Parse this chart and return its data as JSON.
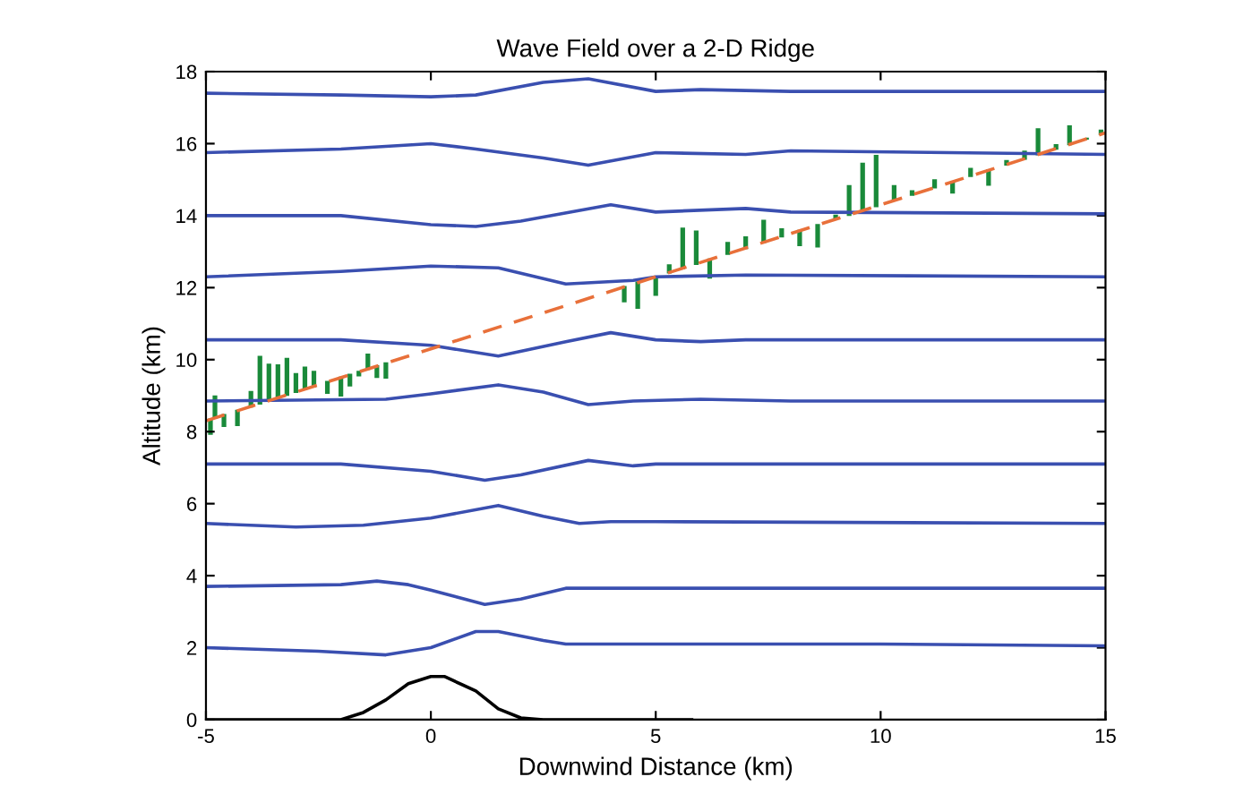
{
  "chart_data": {
    "type": "line",
    "title": "Wave Field over a 2-D Ridge",
    "xlabel": "Downwind Distance (km)",
    "ylabel": "Altitude (km)",
    "xlim": [
      -5,
      15
    ],
    "ylim": [
      0,
      18
    ],
    "xticks": [
      -5,
      0,
      5,
      10,
      15
    ],
    "yticks": [
      0,
      2,
      4,
      6,
      8,
      10,
      12,
      14,
      16,
      18
    ],
    "grid": false,
    "marker": "none",
    "series": [
      {
        "color": "#3a4fb0",
        "x": [
          -5,
          -2.5,
          -1,
          0,
          1,
          1.5,
          2.5,
          3,
          5,
          10,
          15
        ],
        "values": [
          2.0,
          1.9,
          1.8,
          2.0,
          2.45,
          2.45,
          2.2,
          2.1,
          2.1,
          2.1,
          2.05
        ]
      },
      {
        "color": "#3a4fb0",
        "x": [
          -5,
          -2,
          -1.2,
          -0.5,
          0,
          1.2,
          2,
          3,
          5,
          15
        ],
        "values": [
          3.7,
          3.75,
          3.85,
          3.75,
          3.6,
          3.2,
          3.35,
          3.65,
          3.65,
          3.65
        ]
      },
      {
        "color": "#3a4fb0",
        "x": [
          -5,
          -3,
          -1.5,
          0,
          1.5,
          2.5,
          3.3,
          4,
          5,
          15
        ],
        "values": [
          5.45,
          5.35,
          5.4,
          5.6,
          5.95,
          5.65,
          5.45,
          5.5,
          5.5,
          5.45
        ]
      },
      {
        "color": "#3a4fb0",
        "x": [
          -5,
          -2,
          0,
          1.2,
          2,
          3.5,
          4.5,
          5,
          15
        ],
        "values": [
          7.1,
          7.1,
          6.9,
          6.65,
          6.8,
          7.2,
          7.05,
          7.1,
          7.1
        ]
      },
      {
        "color": "#3a4fb0",
        "x": [
          -5,
          -1,
          0,
          1.5,
          2.5,
          3.5,
          4.5,
          6,
          8,
          15
        ],
        "values": [
          8.85,
          8.9,
          9.05,
          9.3,
          9.1,
          8.75,
          8.85,
          8.9,
          8.85,
          8.85
        ]
      },
      {
        "color": "#3a4fb0",
        "x": [
          -5,
          -2,
          0,
          1.5,
          3,
          4,
          5,
          6,
          7,
          15
        ],
        "values": [
          10.55,
          10.55,
          10.4,
          10.1,
          10.5,
          10.75,
          10.55,
          10.5,
          10.55,
          10.55
        ]
      },
      {
        "color": "#3a4fb0",
        "x": [
          -5,
          -2,
          0,
          1.5,
          3,
          4.5,
          5,
          7,
          15
        ],
        "values": [
          12.3,
          12.45,
          12.6,
          12.55,
          12.1,
          12.2,
          12.3,
          12.35,
          12.3
        ]
      },
      {
        "color": "#3a4fb0",
        "x": [
          -5,
          -2,
          0,
          1,
          2,
          4,
          5,
          7,
          8,
          15
        ],
        "values": [
          14.0,
          14.0,
          13.75,
          13.7,
          13.85,
          14.3,
          14.1,
          14.2,
          14.1,
          14.05
        ]
      },
      {
        "color": "#3a4fb0",
        "x": [
          -5,
          -2,
          0,
          1,
          2.5,
          3.5,
          5,
          7,
          8,
          15
        ],
        "values": [
          15.75,
          15.85,
          16.0,
          15.85,
          15.6,
          15.4,
          15.75,
          15.7,
          15.8,
          15.7
        ]
      },
      {
        "color": "#3a4fb0",
        "x": [
          -5,
          -2,
          0,
          1,
          2.5,
          3.5,
          5,
          6,
          8,
          15
        ],
        "values": [
          17.4,
          17.35,
          17.3,
          17.35,
          17.7,
          17.8,
          17.45,
          17.5,
          17.45,
          17.45
        ]
      },
      {
        "color": "#000000",
        "x": [
          -5,
          -2,
          -1.5,
          -1,
          -0.5,
          0,
          0.3,
          1,
          1.5,
          2,
          2.5,
          5.8
        ],
        "values": [
          0,
          0,
          0.2,
          0.55,
          1.0,
          1.2,
          1.2,
          0.8,
          0.3,
          0.05,
          0,
          0
        ]
      },
      {
        "type": "bar",
        "color": "#1a8a3a",
        "x": [
          -4.9,
          -4.8,
          -4.6,
          -4.3,
          -4.0,
          -3.8,
          -3.6,
          -3.4,
          -3.2,
          -3.0,
          -2.8,
          -2.6,
          -2.3,
          -2.0,
          -1.8,
          -1.6,
          -1.4,
          -1.2,
          -1.0,
          -0.8,
          4.3,
          4.6,
          5.0,
          5.3,
          5.6,
          5.9,
          6.2,
          6.6,
          7.0,
          7.4,
          7.8,
          8.2,
          8.6,
          9.0,
          9.3,
          9.6,
          9.9,
          10.3,
          10.7,
          11.2,
          11.6,
          12.0,
          12.4,
          12.8,
          13.2,
          13.5,
          13.9,
          14.2,
          14.6,
          14.9
        ],
        "base": [
          8.34,
          8.38,
          8.46,
          8.58,
          8.7,
          8.78,
          8.86,
          8.94,
          9.02,
          9.1,
          9.18,
          9.26,
          9.38,
          9.5,
          9.58,
          9.66,
          9.74,
          9.82,
          9.9,
          9.98,
          12.02,
          12.14,
          12.3,
          12.42,
          12.54,
          12.66,
          12.78,
          12.94,
          13.1,
          13.26,
          13.42,
          13.58,
          13.74,
          13.9,
          14.02,
          14.14,
          14.26,
          14.42,
          14.58,
          14.78,
          14.94,
          15.1,
          15.26,
          15.42,
          15.58,
          15.7,
          15.86,
          15.98,
          16.14,
          16.26
        ],
        "values": [
          -0.4,
          0.6,
          -0.3,
          -0.4,
          0.4,
          1.3,
          1.0,
          0.9,
          1.0,
          0.5,
          0.6,
          0.4,
          -0.3,
          -0.5,
          -0.3,
          -0.1,
          0.4,
          -0.3,
          -0.4,
          0.0,
          -0.4,
          -0.7,
          -0.5,
          0.2,
          1.1,
          0.9,
          -0.5,
          0.3,
          0.3,
          0.6,
          0.2,
          -0.4,
          -0.6,
          0.1,
          0.8,
          1.3,
          1.4,
          0.4,
          0.1,
          0.2,
          -0.3,
          0.2,
          -0.4,
          0.1,
          0.2,
          0.7,
          0.1,
          0.5,
          0.0,
          0.1
        ]
      },
      {
        "color": "#e8703a",
        "line_style": "dashed",
        "x": [
          -5,
          15
        ],
        "values": [
          8.3,
          16.3
        ]
      }
    ]
  }
}
